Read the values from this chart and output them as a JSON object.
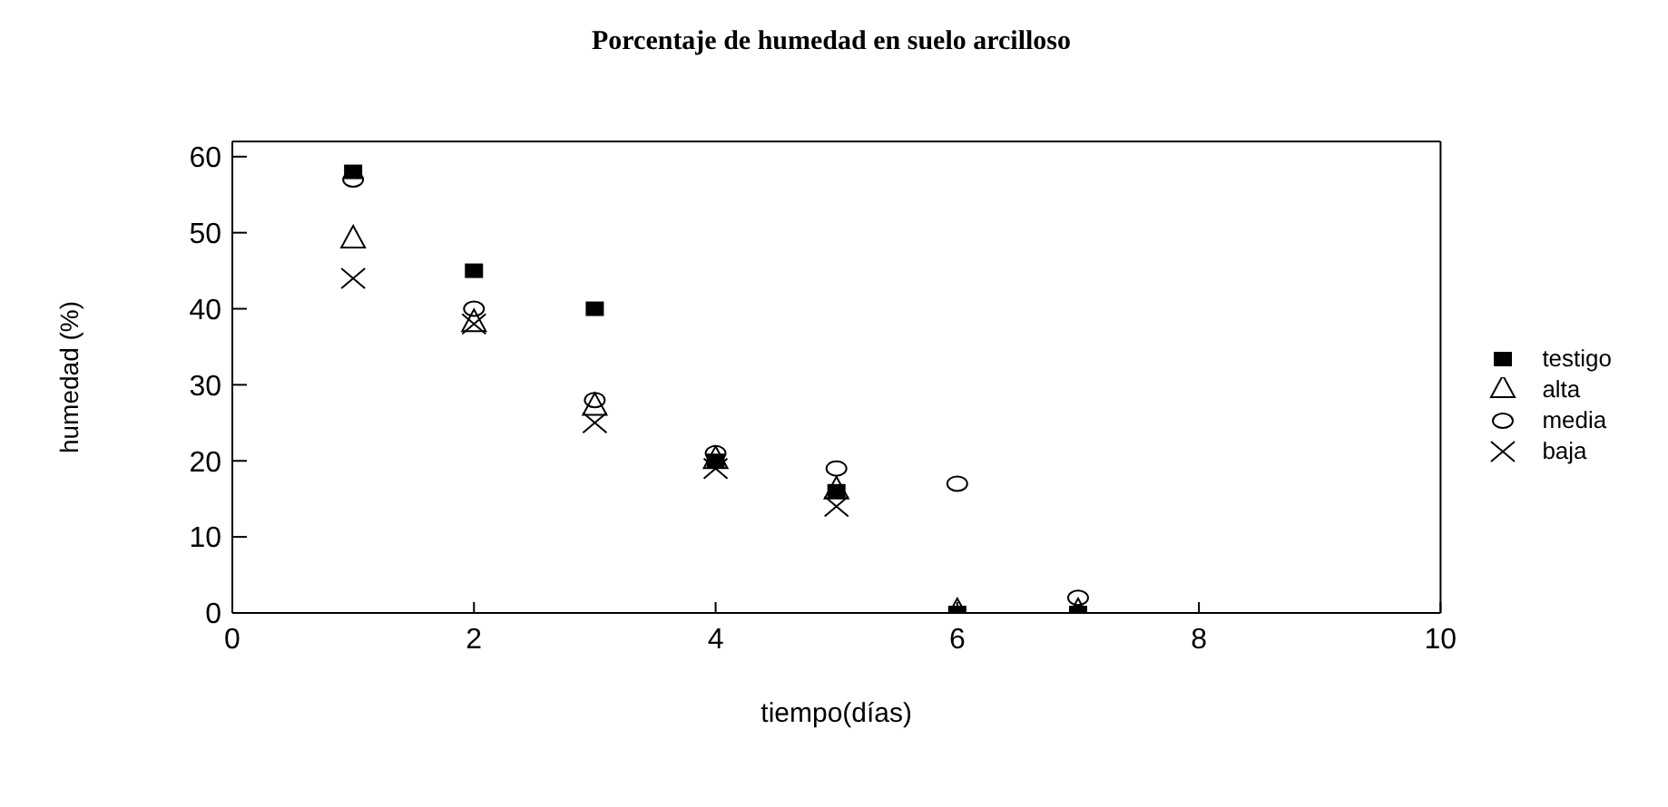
{
  "chart_data": {
    "type": "scatter",
    "title": "Porcentaje de humedad en suelo arcilloso",
    "xlabel": "tiempo(días)",
    "ylabel": "humedad (%)",
    "x": [
      1,
      2,
      3,
      4,
      5,
      6,
      7
    ],
    "series": [
      {
        "name": "testigo",
        "color": "#000000",
        "marker": "square",
        "values": [
          58,
          45,
          40,
          20,
          16,
          0,
          0
        ]
      },
      {
        "name": "alta",
        "color": "#000000",
        "marker": "triangle",
        "values": [
          49,
          38,
          27,
          20,
          16,
          0,
          0
        ]
      },
      {
        "name": "media",
        "color": "#000000",
        "marker": "circle",
        "values": [
          57,
          40,
          28,
          21,
          19,
          17,
          2
        ]
      },
      {
        "name": "baja",
        "color": "#000000",
        "marker": "cross",
        "values": [
          44,
          38,
          25,
          19,
          14,
          null,
          null
        ]
      }
    ],
    "xlim": [
      0,
      10
    ],
    "xticks": [
      0,
      2,
      4,
      6,
      8,
      10
    ],
    "ylim": [
      0,
      62
    ],
    "yticks": [
      0,
      10,
      20,
      30,
      40,
      50,
      60
    ],
    "grid": false,
    "legend": "right"
  }
}
